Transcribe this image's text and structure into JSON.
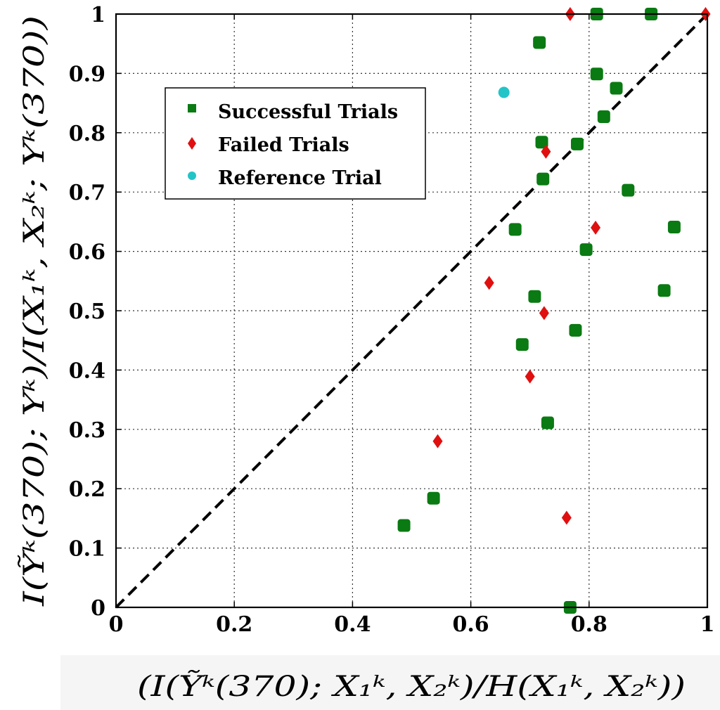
{
  "chart_data": {
    "type": "scatter",
    "xlabel": "(I(Ỹᵏ(370); X₁ᵏ, X₂ᵏ)/H(X₁ᵏ, X₂ᵏ))",
    "ylabel": "I(Ỹᵏ(370); Yᵏ)/I(X₁ᵏ, X₂ᵏ; Yᵏ(370))",
    "xlim": [
      0,
      1
    ],
    "ylim": [
      0,
      1
    ],
    "grid": true,
    "x_ticks": [
      "0",
      "0.2",
      "0.4",
      "0.6",
      "0.8",
      "1"
    ],
    "y_ticks": [
      "0",
      "0.1",
      "0.2",
      "0.3",
      "0.4",
      "0.5",
      "0.6",
      "0.7",
      "0.8",
      "0.9",
      "1"
    ],
    "legend_position": "upper-left",
    "reference_line": {
      "style": "dashed",
      "color": "#000000",
      "from": [
        0,
        0
      ],
      "to": [
        1,
        1
      ]
    },
    "series": [
      {
        "name": "Successful Trials",
        "marker": "square",
        "color": "#0a7a12",
        "points": [
          [
            0.487,
            0.138
          ],
          [
            0.537,
            0.184
          ],
          [
            0.687,
            0.443
          ],
          [
            0.708,
            0.524
          ],
          [
            0.675,
            0.637
          ],
          [
            0.722,
            0.722
          ],
          [
            0.72,
            0.784
          ],
          [
            0.78,
            0.781
          ],
          [
            0.716,
            0.952
          ],
          [
            0.813,
            1.0
          ],
          [
            0.905,
            1.0
          ],
          [
            0.813,
            0.899
          ],
          [
            0.846,
            0.875
          ],
          [
            0.825,
            0.827
          ],
          [
            0.866,
            0.703
          ],
          [
            0.795,
            0.603
          ],
          [
            0.944,
            0.641
          ],
          [
            0.927,
            0.534
          ],
          [
            0.777,
            0.467
          ],
          [
            0.73,
            0.311
          ],
          [
            0.768,
            0.0
          ]
        ]
      },
      {
        "name": "Failed Trials",
        "marker": "diamond",
        "color": "#e01010",
        "points": [
          [
            0.768,
            1.0
          ],
          [
            0.997,
            1.0
          ],
          [
            0.727,
            0.768
          ],
          [
            0.811,
            0.64
          ],
          [
            0.631,
            0.547
          ],
          [
            0.724,
            0.496
          ],
          [
            0.7,
            0.389
          ],
          [
            0.544,
            0.28
          ],
          [
            0.762,
            0.151
          ]
        ]
      },
      {
        "name": "Reference Trial",
        "marker": "circle",
        "color": "#22c4c8",
        "points": [
          [
            0.656,
            0.868
          ]
        ]
      }
    ]
  }
}
